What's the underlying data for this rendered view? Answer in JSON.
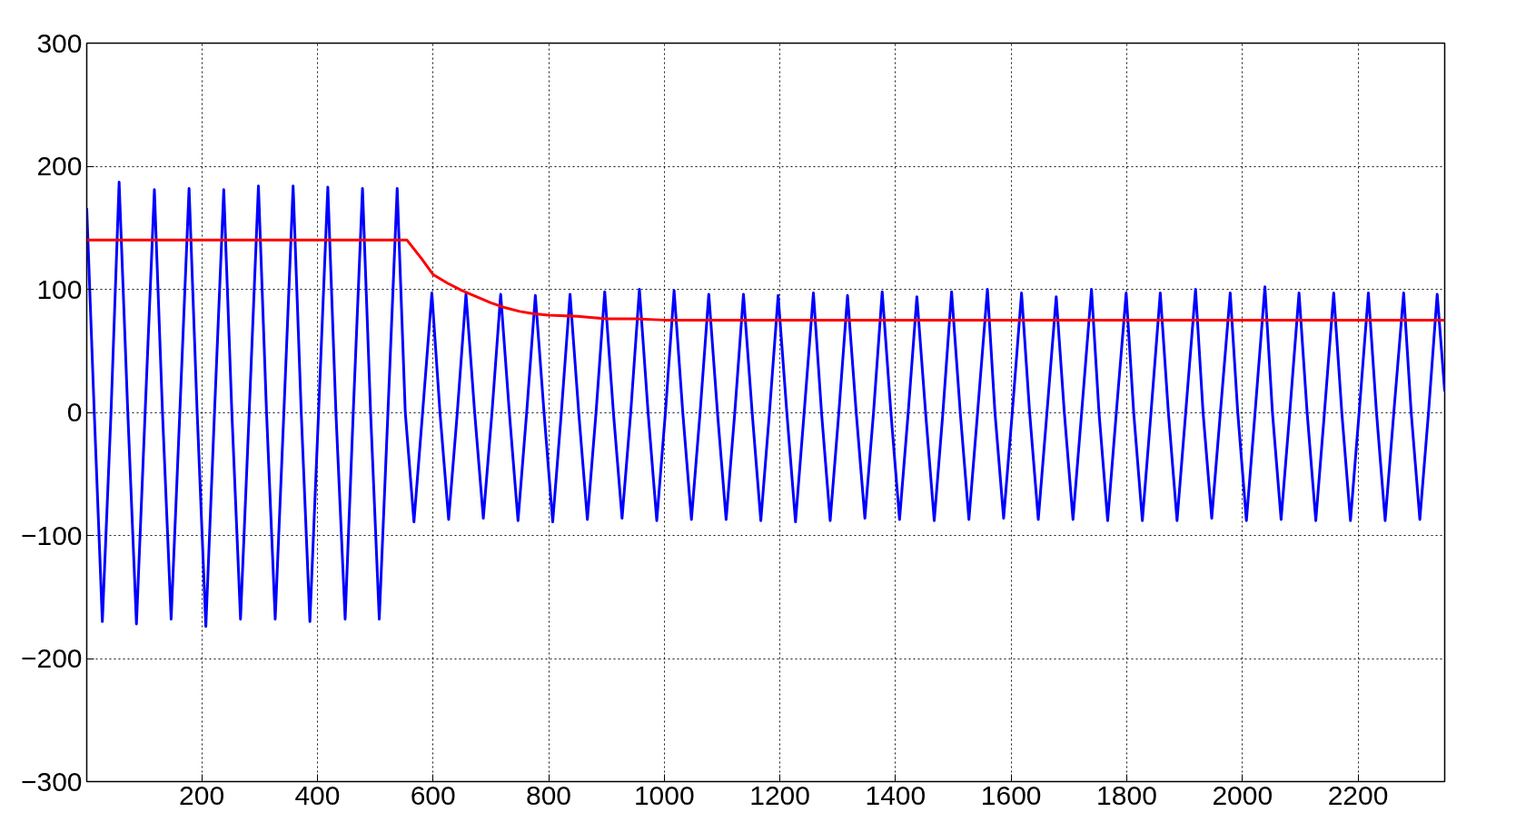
{
  "chart_data": {
    "type": "line",
    "xlim": [
      1,
      2350
    ],
    "ylim": [
      -300,
      300
    ],
    "xticks": [
      200,
      400,
      600,
      800,
      1000,
      1200,
      1400,
      1600,
      1800,
      2000,
      2200
    ],
    "yticks": [
      -300,
      -200,
      -100,
      0,
      100,
      200,
      300
    ],
    "grid": true,
    "line_style": "solid",
    "series": [
      {
        "color": "#0000ff",
        "x": [
          1,
          14,
          28,
          43,
          57,
          72,
          87,
          102,
          118,
          132,
          147,
          162,
          178,
          192,
          207,
          222,
          238,
          252,
          267,
          282,
          298,
          312,
          327,
          342,
          358,
          372,
          387,
          402,
          418,
          432,
          448,
          462,
          478,
          492,
          507,
          522,
          538,
          552,
          567,
          582,
          598,
          612,
          627,
          642,
          657,
          672,
          687,
          702,
          717,
          732,
          747,
          762,
          777,
          792,
          807,
          822,
          837,
          852,
          867,
          882,
          897,
          912,
          927,
          942,
          957,
          972,
          987,
          1002,
          1017,
          1032,
          1047,
          1062,
          1077,
          1092,
          1107,
          1122,
          1137,
          1152,
          1167,
          1182,
          1197,
          1212,
          1227,
          1242,
          1258,
          1272,
          1287,
          1302,
          1317,
          1332,
          1347,
          1362,
          1377,
          1392,
          1407,
          1422,
          1437,
          1452,
          1467,
          1482,
          1497,
          1512,
          1527,
          1542,
          1559,
          1572,
          1587,
          1602,
          1618,
          1632,
          1647,
          1662,
          1678,
          1692,
          1707,
          1722,
          1739,
          1752,
          1767,
          1782,
          1799,
          1812,
          1827,
          1842,
          1858,
          1872,
          1887,
          1902,
          1919,
          1932,
          1947,
          1962,
          1979,
          1992,
          2007,
          2022,
          2039,
          2052,
          2067,
          2082,
          2098,
          2112,
          2127,
          2142,
          2158,
          2172,
          2187,
          2202,
          2218,
          2232,
          2247,
          2262,
          2279,
          2292,
          2307,
          2322,
          2337,
          2350
        ],
        "values": [
          166,
          0,
          -170,
          0,
          187,
          0,
          -172,
          0,
          181,
          0,
          -168,
          0,
          182,
          0,
          -174,
          0,
          181,
          0,
          -168,
          0,
          184,
          0,
          -168,
          0,
          184,
          0,
          -170,
          0,
          183,
          0,
          -168,
          0,
          182,
          0,
          -168,
          0,
          182,
          0,
          -89,
          0,
          97,
          0,
          -87,
          0,
          96,
          0,
          -86,
          0,
          96,
          0,
          -88,
          0,
          95,
          0,
          -89,
          0,
          96,
          0,
          -87,
          0,
          98,
          0,
          -86,
          0,
          100,
          0,
          -88,
          0,
          99,
          0,
          -87,
          0,
          96,
          0,
          -87,
          0,
          96,
          0,
          -88,
          0,
          95,
          0,
          -89,
          0,
          97,
          0,
          -88,
          0,
          95,
          0,
          -86,
          0,
          98,
          0,
          -87,
          0,
          94,
          0,
          -88,
          0,
          98,
          0,
          -87,
          0,
          100,
          0,
          -86,
          0,
          97,
          0,
          -87,
          0,
          94,
          0,
          -87,
          0,
          100,
          0,
          -88,
          0,
          97,
          0,
          -88,
          0,
          97,
          0,
          -88,
          0,
          100,
          0,
          -86,
          0,
          97,
          0,
          -88,
          0,
          102,
          0,
          -87,
          0,
          97,
          0,
          -88,
          0,
          97,
          0,
          -88,
          0,
          97,
          0,
          -88,
          0,
          97,
          0,
          -87,
          0,
          96,
          17
        ]
      },
      {
        "color": "#ff0000",
        "x": [
          1,
          100,
          200,
          300,
          400,
          500,
          555,
          580,
          600,
          625,
          650,
          675,
          700,
          725,
          750,
          775,
          800,
          850,
          900,
          950,
          1000,
          1500,
          2000,
          2350
        ],
        "values": [
          140,
          140,
          140,
          140,
          140,
          140,
          140,
          125,
          112,
          105,
          99,
          94,
          89,
          85,
          82,
          80,
          79,
          78,
          76,
          76,
          75,
          75,
          75,
          75
        ]
      }
    ]
  }
}
